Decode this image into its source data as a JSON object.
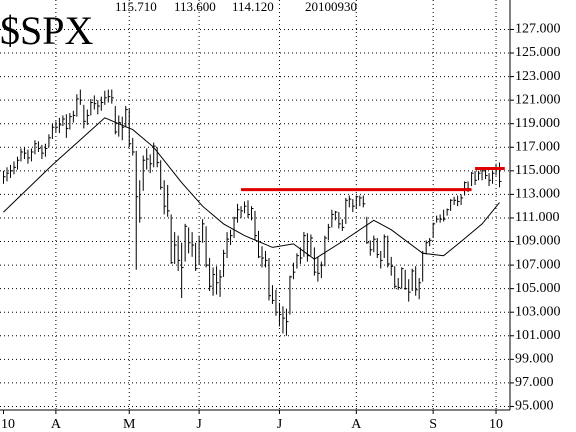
{
  "chart_data": {
    "type": "ohlc",
    "title": "$SPX",
    "header": [
      "115.710",
      "113.600",
      "114.120",
      "20100930"
    ],
    "bar_color": "#000000",
    "grid": true,
    "xlim": [
      -1,
      145
    ],
    "ylim": [
      94.7,
      129.5
    ],
    "xticks": [
      {
        "value": 0,
        "label": "10"
      },
      {
        "value": 15,
        "label": "A"
      },
      {
        "value": 36,
        "label": "M"
      },
      {
        "value": 56,
        "label": "J"
      },
      {
        "value": 79,
        "label": "J"
      },
      {
        "value": 101,
        "label": "A"
      },
      {
        "value": 123,
        "label": "S"
      },
      {
        "value": 141,
        "label": "10"
      }
    ],
    "yticks": [
      {
        "value": 95,
        "label": "95.000"
      },
      {
        "value": 97,
        "label": "97.000"
      },
      {
        "value": 99,
        "label": "99.000"
      },
      {
        "value": 101,
        "label": "101.000"
      },
      {
        "value": 103,
        "label": "103.000"
      },
      {
        "value": 105,
        "label": "105.000"
      },
      {
        "value": 107,
        "label": "107.000"
      },
      {
        "value": 109,
        "label": "109.000"
      },
      {
        "value": 111,
        "label": "111.000"
      },
      {
        "value": 113,
        "label": "113.000"
      },
      {
        "value": 115,
        "label": "115.000"
      },
      {
        "value": 117,
        "label": "117.000"
      },
      {
        "value": 119,
        "label": "119.000"
      },
      {
        "value": 121,
        "label": "121.000"
      },
      {
        "value": 123,
        "label": "123.000"
      },
      {
        "value": 125,
        "label": "125.000"
      },
      {
        "value": 127,
        "label": "127.000"
      }
    ],
    "high": [
      115.0,
      115.3,
      115.5,
      115.8,
      116.2,
      116.9,
      117.0,
      116.8,
      116.9,
      117.6,
      117.5,
      117.2,
      117.3,
      118.1,
      119.0,
      119.2,
      119.5,
      119.7,
      119.8,
      119.9,
      120.1,
      121.5,
      121.9,
      120.6,
      120.2,
      121.1,
      121.4,
      121.0,
      121.3,
      121.8,
      121.9,
      121.9,
      120.5,
      119.7,
      119.6,
      120.5,
      120.3,
      117.8,
      116.7,
      114.2,
      116.3,
      116.9,
      116.4,
      117.4,
      117.0,
      115.9,
      114.2,
      113.8,
      111.3,
      109.8,
      109.5,
      108.9,
      110.5,
      110.2,
      109.8,
      108.9,
      109.5,
      110.9,
      110.3,
      107.6,
      106.8,
      106.9,
      106.6,
      108.3,
      109.8,
      110.0,
      111.1,
      112.2,
      112.0,
      112.4,
      112.5,
      112.0,
      111.6,
      109.9,
      108.6,
      108.2,
      107.6,
      105.3,
      104.9,
      103.8,
      103.5,
      103.3,
      106.1,
      107.2,
      108.0,
      108.5,
      109.8,
      109.7,
      109.6,
      108.5,
      107.7,
      107.3,
      109.5,
      110.5,
      111.7,
      111.6,
      111.5,
      110.9,
      112.7,
      112.9,
      112.6,
      112.9,
      112.9,
      112.9,
      111.1,
      109.1,
      109.5,
      109.3,
      108.2,
      109.6,
      109.5,
      107.7,
      106.9,
      105.9,
      106.8,
      106.6,
      105.8,
      106.7,
      106.9,
      105.9,
      108.2,
      109.1,
      109.3,
      110.6,
      111.2,
      111.3,
      111.7,
      111.8,
      112.6,
      112.8,
      112.9,
      113.0,
      114.1,
      114.1,
      114.9,
      115.0,
      115.0,
      115.3,
      115.2,
      114.8,
      115.0,
      115.6,
      115.7
    ],
    "low": [
      113.9,
      114.1,
      114.4,
      114.7,
      115.1,
      115.8,
      116.0,
      115.6,
      115.8,
      116.4,
      116.6,
      116.0,
      116.2,
      117.0,
      117.7,
      118.3,
      118.2,
      118.8,
      117.8,
      118.5,
      119.1,
      119.6,
      120.6,
      118.6,
      118.9,
      119.7,
      120.2,
      119.8,
      120.1,
      120.6,
      120.8,
      120.7,
      118.1,
      117.9,
      117.6,
      118.7,
      117.0,
      116.3,
      106.6,
      110.6,
      113.3,
      115.1,
      114.8,
      115.3,
      115.3,
      113.4,
      111.3,
      111.1,
      107.1,
      107.1,
      106.5,
      104.2,
      107.3,
      108.0,
      107.7,
      106.5,
      107.0,
      108.9,
      106.8,
      104.8,
      104.4,
      104.5,
      104.3,
      106.0,
      107.6,
      108.7,
      109.3,
      110.6,
      111.0,
      111.4,
      111.0,
      110.8,
      109.1,
      107.6,
      106.8,
      106.8,
      104.0,
      103.7,
      102.7,
      101.8,
      101.2,
      101.0,
      102.8,
      105.8,
      106.7,
      107.1,
      107.7,
      107.3,
      107.8,
      106.1,
      105.6,
      105.9,
      106.9,
      109.1,
      110.2,
      110.8,
      110.1,
      109.9,
      110.5,
      111.9,
      111.5,
      111.8,
      112.0,
      111.9,
      108.8,
      107.8,
      108.1,
      107.6,
      106.7,
      107.6,
      106.8,
      106.1,
      105.0,
      104.9,
      105.0,
      104.9,
      103.9,
      104.8,
      104.4,
      104.1,
      105.6,
      107.9,
      108.6,
      109.3,
      110.6,
      110.6,
      110.7,
      111.2,
      111.6,
      112.1,
      112.0,
      112.1,
      112.9,
      113.2,
      113.7,
      113.8,
      114.2,
      114.2,
      114.3,
      113.7,
      113.9,
      114.6,
      113.6
    ],
    "close": [
      114.5,
      114.8,
      115.0,
      115.3,
      115.9,
      116.6,
      116.5,
      116.1,
      116.6,
      117.3,
      116.9,
      116.5,
      116.9,
      117.8,
      118.7,
      118.7,
      118.9,
      119.4,
      118.6,
      119.6,
      119.7,
      121.1,
      121.0,
      119.2,
      119.7,
      120.8,
      120.7,
      120.5,
      120.8,
      121.2,
      121.3,
      121.2,
      118.3,
      119.1,
      118.7,
      120.2,
      117.3,
      116.6,
      112.8,
      111.0,
      115.9,
      116.0,
      115.6,
      117.1,
      115.7,
      113.6,
      112.0,
      111.6,
      107.2,
      108.7,
      107.4,
      106.8,
      110.3,
      108.9,
      108.7,
      106.7,
      109.0,
      110.5,
      107.0,
      105.2,
      106.2,
      105.5,
      106.0,
      108.0,
      109.2,
      109.5,
      111.0,
      111.7,
      111.6,
      112.0,
      111.3,
      111.8,
      109.5,
      107.7,
      107.6,
      107.4,
      104.4,
      104.0,
      103.0,
      102.8,
      102.5,
      102.2,
      106.0,
      106.4,
      107.8,
      107.6,
      109.5,
      107.8,
      109.3,
      106.4,
      106.3,
      107.0,
      109.3,
      110.2,
      111.3,
      111.5,
      110.5,
      110.2,
      112.5,
      112.6,
      112.0,
      112.8,
      112.7,
      112.2,
      108.9,
      108.3,
      109.2,
      107.9,
      107.4,
      109.4,
      107.1,
      106.9,
      105.2,
      105.1,
      106.7,
      105.0,
      104.7,
      106.5,
      104.9,
      105.5,
      108.0,
      108.9,
      109.1,
      110.5,
      110.9,
      110.9,
      110.9,
      111.7,
      112.5,
      112.5,
      112.4,
      112.7,
      114.0,
      113.5,
      114.8,
      114.2,
      114.8,
      115.0,
      114.6,
      114.2,
      114.8,
      115.2,
      114.1
    ],
    "ma": {
      "color": "#000000",
      "x": [
        0,
        14,
        29,
        37,
        43,
        51,
        57,
        63,
        69,
        77,
        83,
        89,
        97,
        106,
        111,
        120,
        126,
        131,
        137,
        142
      ],
      "values": [
        111.5,
        115.5,
        119.5,
        118.5,
        117,
        114,
        112,
        110.5,
        109.5,
        108.5,
        108.8,
        107.5,
        109,
        110.8,
        110,
        108,
        107.8,
        109,
        110.5,
        112.3
      ]
    },
    "reference_lines": [
      {
        "x": [
          68,
          134
        ],
        "value": 113.4,
        "color": "#e00000"
      },
      {
        "x": [
          135,
          143.5
        ],
        "value": 115.2,
        "color": "#e00000"
      }
    ]
  }
}
